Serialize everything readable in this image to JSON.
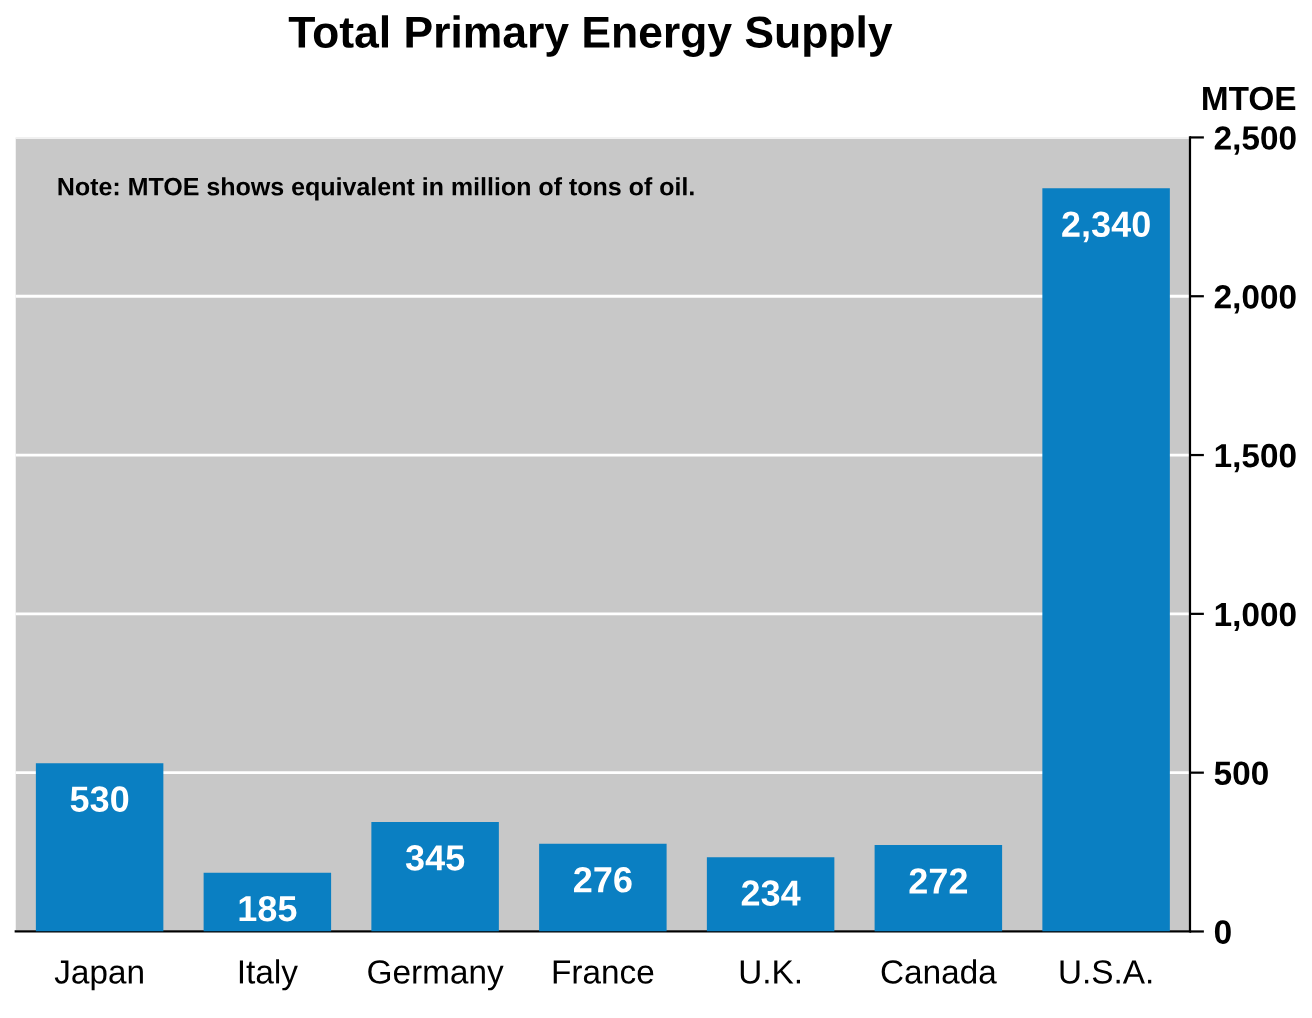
{
  "chart_data": {
    "type": "bar",
    "title": "Total Primary Energy Supply",
    "ylabel": "MTOE",
    "categories": [
      "Japan",
      "Italy",
      "Germany",
      "France",
      "U.K.",
      "Canada",
      "U.S.A."
    ],
    "values": [
      530,
      185,
      345,
      276,
      234,
      272,
      2340
    ],
    "value_labels": [
      "530",
      "185",
      "345",
      "276",
      "234",
      "272",
      "2,340"
    ],
    "color": "#0a7fc2",
    "ylim": [
      0,
      2500
    ],
    "yticks": [
      0,
      {
        "value": 500,
        "label": "500"
      },
      {
        "value": 1000,
        "label": "1,000"
      },
      {
        "value": 1500,
        "label": "1,500"
      },
      {
        "value": 2000,
        "label": "2,000"
      },
      {
        "value": 2500,
        "label": "2,500"
      }
    ],
    "grid": "y",
    "annotations": [
      "Note: MTOE shows equivalent in million of tons of oil."
    ]
  }
}
